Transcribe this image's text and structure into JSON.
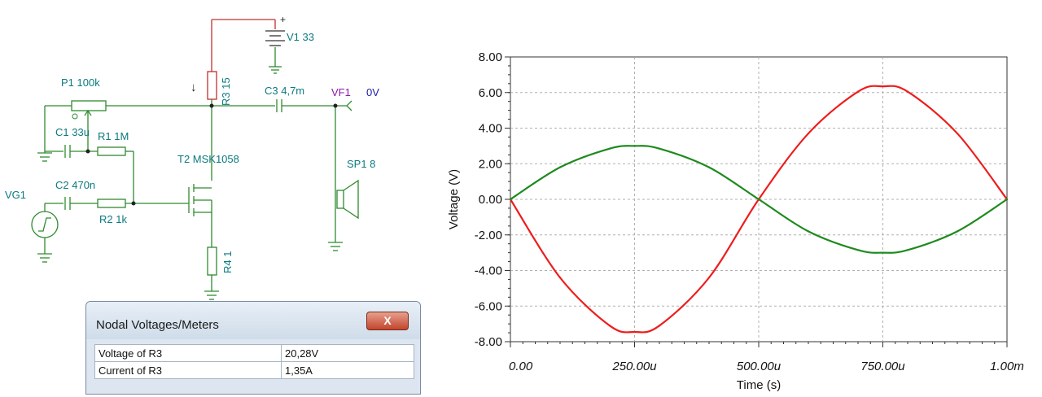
{
  "schematic": {
    "labels": {
      "p1": "P1 100k",
      "c1": "C1 33u",
      "r1": "R1 1M",
      "vg1": "VG1",
      "c2": "C2 470n",
      "r2": "R2 1k",
      "r3": "R3 15",
      "t2": "T2 MSK1058",
      "r4": "R4 1",
      "c3": "C3 4,7m",
      "v1": "V1 33",
      "vf1": "VF1",
      "vf1_value": "0V",
      "sp1": "SP1 8"
    }
  },
  "meter_window": {
    "title": "Nodal Voltages/Meters",
    "close_label": "X",
    "rows": [
      {
        "name": "Voltage of R3",
        "value": "20,28V"
      },
      {
        "name": "Current of R3",
        "value": "1,35A"
      }
    ]
  },
  "chart_data": {
    "type": "line",
    "xlabel": "Time (s)",
    "ylabel": "Voltage (V)",
    "xlim": [
      0,
      0.001
    ],
    "ylim": [
      -8,
      8
    ],
    "x_ticks": [
      "0.00",
      "250.00u",
      "500.00u",
      "750.00u",
      "1.00m"
    ],
    "y_ticks": [
      "8.00",
      "6.00",
      "4.00",
      "2.00",
      "0.00",
      "-2.00",
      "-4.00",
      "-6.00",
      "-8.00"
    ],
    "grid": true,
    "x": [
      0,
      0.0001,
      0.0002,
      0.00025,
      0.0003,
      0.0004,
      0.0005,
      0.0006,
      0.0007,
      0.00075,
      0.0008,
      0.0009,
      0.001
    ],
    "series": [
      {
        "color": "#ee1c1c",
        "values": [
          0,
          -4.4,
          -7.1,
          -7.45,
          -7.1,
          -4.4,
          0,
          3.7,
          6.05,
          6.35,
          6.05,
          3.7,
          0
        ]
      },
      {
        "color": "#1e8a1e",
        "values": [
          0,
          1.8,
          2.85,
          3.0,
          2.85,
          1.8,
          0,
          -1.8,
          -2.85,
          -3.0,
          -2.85,
          -1.8,
          0
        ]
      }
    ]
  }
}
